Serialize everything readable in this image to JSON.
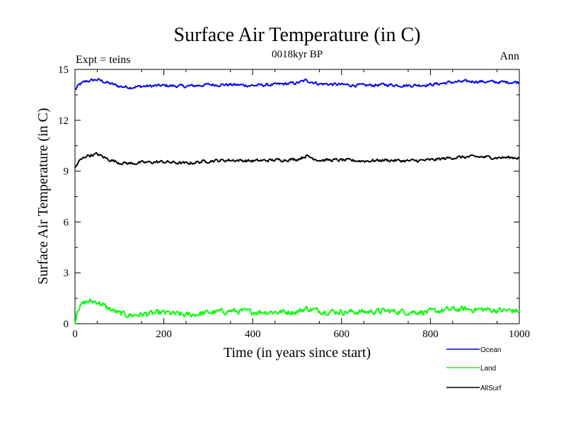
{
  "chart_data": {
    "type": "line",
    "title": "Surface Air Temperature (in C)",
    "subtitle": "0018kyr BP",
    "left_annotation": "Expt = teins",
    "right_annotation": "Ann",
    "xlabel": "Time (in years since start)",
    "ylabel": "Surface Air Temperature (in C)",
    "xlim": [
      0,
      1000
    ],
    "ylim": [
      0,
      15
    ],
    "xticks": [
      0,
      200,
      400,
      600,
      800,
      1000
    ],
    "yticks": [
      0,
      3,
      6,
      9,
      12,
      15
    ],
    "legend_position": "below-right",
    "series": [
      {
        "name": "Ocean",
        "color": "#0000ff",
        "x": [
          0,
          10,
          25,
          50,
          75,
          100,
          125,
          150,
          200,
          250,
          300,
          350,
          400,
          450,
          500,
          520,
          550,
          600,
          650,
          700,
          750,
          800,
          850,
          900,
          950,
          1000
        ],
        "values": [
          13.8,
          14.1,
          14.3,
          14.4,
          14.2,
          14.0,
          13.95,
          14.0,
          14.05,
          14.0,
          14.1,
          14.1,
          14.05,
          14.1,
          14.2,
          14.35,
          14.15,
          14.1,
          14.05,
          14.1,
          14.05,
          14.1,
          14.25,
          14.3,
          14.25,
          14.25
        ]
      },
      {
        "name": "Land",
        "color": "#00ff00",
        "x": [
          0,
          5,
          25,
          50,
          75,
          100,
          125,
          150,
          200,
          250,
          300,
          350,
          400,
          450,
          500,
          520,
          550,
          600,
          650,
          700,
          750,
          800,
          850,
          900,
          950,
          1000
        ],
        "values": [
          0.0,
          0.9,
          1.3,
          1.3,
          0.9,
          0.6,
          0.5,
          0.55,
          0.65,
          0.5,
          0.65,
          0.75,
          0.7,
          0.7,
          0.7,
          0.9,
          0.75,
          0.7,
          0.7,
          0.75,
          0.7,
          0.7,
          0.85,
          0.85,
          0.8,
          0.75
        ]
      },
      {
        "name": "AllSurf",
        "color": "#000000",
        "x": [
          0,
          10,
          25,
          50,
          75,
          100,
          125,
          150,
          200,
          250,
          300,
          350,
          400,
          450,
          500,
          520,
          550,
          600,
          650,
          700,
          750,
          800,
          850,
          900,
          950,
          1000
        ],
        "values": [
          9.2,
          9.6,
          9.9,
          10.0,
          9.7,
          9.5,
          9.45,
          9.5,
          9.55,
          9.45,
          9.6,
          9.65,
          9.6,
          9.65,
          9.7,
          9.9,
          9.65,
          9.65,
          9.6,
          9.65,
          9.6,
          9.65,
          9.8,
          9.85,
          9.8,
          9.8
        ]
      }
    ]
  }
}
